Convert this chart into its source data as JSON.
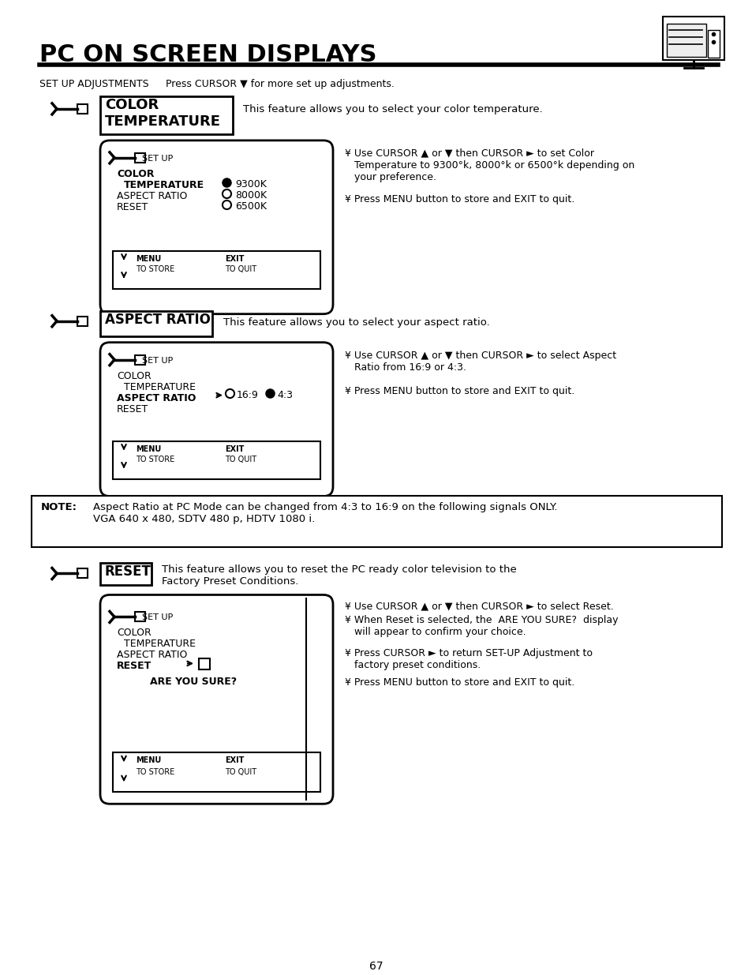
{
  "title": "PC ON SCREEN DISPLAYS",
  "bg_color": "#ffffff",
  "text_color": "#000000",
  "page_number": "67",
  "section1_label": "COLOR\nTEMPERATURE",
  "section1_desc": "This feature allows you to select your color temperature.",
  "section1_bullet1": "¥ Use CURSOR ▲ or ▼ then CURSOR ► to set Color\n   Temperature to 9300°k, 8000°k or 6500°k depending on\n   your preference.",
  "section1_bullet2": "¥ Press MENU button to store and EXIT to quit.",
  "section2_label": "ASPECT RATIO",
  "section2_desc": "This feature allows you to select your aspect ratio.",
  "section2_bullet1": "¥ Use CURSOR ▲ or ▼ then CURSOR ► to select Aspect\n   Ratio from 16:9 or 4:3.",
  "section2_bullet2": "¥ Press MENU button to store and EXIT to quit.",
  "note_bold": "NOTE:",
  "note_text": "Aspect Ratio at PC Mode can be changed from 4:3 to 16:9 on the following signals ONLY.\nVGA 640 x 480, SDTV 480 p, HDTV 1080 i.",
  "section3_label": "RESET",
  "section3_desc": "This feature allows you to reset the PC ready color television to the\nFactory Preset Conditions.",
  "section3_bullet1": "¥ Use CURSOR ▲ or ▼ then CURSOR ► to select Reset.",
  "section3_bullet2": "¥ When Reset is selected, the  ARE YOU SURE?  display\n   will appear to confirm your choice.",
  "section3_bullet3": "¥ Press CURSOR ► to return SET-UP Adjustment to\n   factory preset conditions.",
  "section3_bullet4": "¥ Press MENU button to store and EXIT to quit.",
  "setup_label": "SET UP ADJUSTMENTS",
  "setup_note": "Press CURSOR ▼ for more set up adjustments."
}
